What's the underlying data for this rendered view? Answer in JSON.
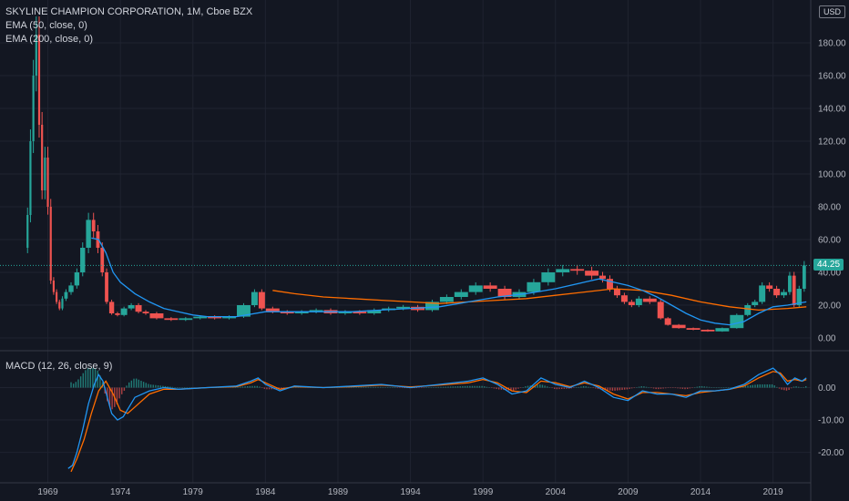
{
  "header": {
    "title": "SKYLINE CHAMPION CORPORATION, 1M, Cboe BZX",
    "ema50_label": "EMA (50, close, 0)",
    "ema200_label": "EMA (200, close, 0)",
    "macd_label": "MACD (12, 26, close, 9)"
  },
  "price_axis": {
    "currency": "USD",
    "current_price": "44.25",
    "current_price_color": "#26a69a"
  },
  "colors": {
    "background": "#131722",
    "up": "#26a69a",
    "down": "#ef5350",
    "ema50": "#2196f3",
    "ema200": "#ff6d00",
    "macd": "#2196f3",
    "signal": "#ff6d00"
  },
  "chart_data": [
    {
      "type": "candlestick",
      "title": "SKYLINE CHAMPION CORPORATION, 1M, Cboe BZX",
      "x_ticks": [
        "1969",
        "1974",
        "1979",
        "1984",
        "1989",
        "1994",
        "1999",
        "2004",
        "2009",
        "2014",
        "2019"
      ],
      "y_ticks": [
        "0.00",
        "20.00",
        "40.00",
        "60.00",
        "80.00",
        "100.00",
        "120.00",
        "140.00",
        "160.00",
        "180.00"
      ],
      "ylim": [
        -5,
        195
      ],
      "xlim": [
        1965.7,
        2021.6
      ],
      "close_series": {
        "name": "close",
        "x": [
          1967.5,
          1967.7,
          1967.9,
          1968.1,
          1968.3,
          1968.5,
          1968.7,
          1968.9,
          1969.1,
          1969.3,
          1969.5,
          1969.7,
          1969.9,
          1970.1,
          1970.4,
          1970.8,
          1971.2,
          1971.6,
          1972.0,
          1972.3,
          1972.6,
          1972.9,
          1973.2,
          1973.6,
          1974.0,
          1974.5,
          1975.0,
          1975.5,
          1976.0,
          1977.0,
          1978.0,
          1979.0,
          1980.0,
          1981.0,
          1982.0,
          1983.0,
          1983.5,
          1984.0,
          1985.0,
          1986.0,
          1987.0,
          1988.0,
          1989.0,
          1990.0,
          1991.0,
          1992.0,
          1993.0,
          1994.0,
          1995.0,
          1996.0,
          1997.0,
          1998.0,
          1999.0,
          2000.0,
          2001.0,
          2002.0,
          2003.0,
          2004.0,
          2005.0,
          2006.0,
          2007.0,
          2007.5,
          2008.0,
          2008.5,
          2009.0,
          2009.5,
          2010.0,
          2011.0,
          2011.5,
          2012.0,
          2013.0,
          2014.0,
          2015.0,
          2016.0,
          2017.0,
          2017.5,
          2018.0,
          2018.5,
          2019.0,
          2019.5,
          2020.0,
          2020.3,
          2020.6,
          2021.0,
          2021.3
        ],
        "values": [
          55,
          75,
          120,
          160,
          185,
          130,
          90,
          110,
          80,
          35,
          28,
          22,
          18,
          24,
          28,
          32,
          40,
          55,
          72,
          65,
          55,
          40,
          22,
          15,
          14,
          18,
          20,
          16,
          15,
          12,
          11,
          12,
          13,
          12,
          13,
          20,
          28,
          18,
          16,
          15,
          16,
          17,
          15,
          16,
          15,
          17,
          18,
          19,
          17,
          22,
          25,
          28,
          32,
          30,
          25,
          28,
          34,
          40,
          42,
          41,
          38,
          36,
          30,
          26,
          22,
          20,
          24,
          22,
          12,
          8,
          6,
          5,
          4,
          6,
          14,
          20,
          22,
          32,
          30,
          26,
          28,
          38,
          20,
          30,
          44.25
        ]
      },
      "ema50": {
        "name": "EMA (50, close, 0)",
        "x": [
          1972.0,
          1972.5,
          1973.0,
          1973.5,
          1974.0,
          1975.0,
          1976.0,
          1977.0,
          1978.0,
          1979.0,
          1980.0,
          1982.0,
          1984.0,
          1986.0,
          1988.0,
          1990.0,
          1992.0,
          1994.0,
          1996.0,
          1998.0,
          2000.0,
          2002.0,
          2004.0,
          2006.0,
          2007.0,
          2008.0,
          2009.0,
          2010.0,
          2011.0,
          2012.0,
          2013.0,
          2014.0,
          2015.0,
          2016.0,
          2017.0,
          2018.0,
          2019.0,
          2020.0,
          2021.3
        ],
        "values": [
          61,
          60,
          52,
          40,
          34,
          27,
          22,
          18,
          16,
          14,
          13,
          13,
          16,
          16,
          16,
          16,
          17,
          18,
          19,
          22,
          25,
          27,
          30,
          34,
          36,
          34,
          32,
          29,
          25,
          20,
          15,
          11,
          9,
          8,
          10,
          15,
          19,
          20,
          22
        ]
      },
      "ema200": {
        "name": "EMA (200, close, 0)",
        "x": [
          1984.5,
          1986.0,
          1988.0,
          1990.0,
          1992.0,
          1994.0,
          1996.0,
          1998.0,
          2000.0,
          2002.0,
          2004.0,
          2006.0,
          2008.0,
          2010.0,
          2012.0,
          2014.0,
          2016.0,
          2018.0,
          2020.0,
          2021.3
        ],
        "values": [
          29,
          27,
          25,
          24,
          23,
          22,
          21,
          22,
          23,
          24,
          26,
          28,
          30,
          29,
          26,
          22,
          19,
          17,
          18,
          19
        ]
      }
    },
    {
      "type": "line",
      "title": "MACD (12, 26, close, 9)",
      "y_ticks": [
        "0.00",
        "-10.00",
        "-20.00"
      ],
      "ylim": [
        -28,
        10
      ],
      "series": [
        {
          "name": "MACD",
          "x": [
            1970.4,
            1970.7,
            1971.0,
            1971.4,
            1971.8,
            1972.2,
            1972.5,
            1972.8,
            1973.1,
            1973.4,
            1973.8,
            1974.2,
            1974.6,
            1975.0,
            1976.0,
            1977.0,
            1978.0,
            1980.0,
            1982.0,
            1983.0,
            1983.5,
            1984.0,
            1985.0,
            1986.0,
            1988.0,
            1990.0,
            1992.0,
            1994.0,
            1996.0,
            1998.0,
            1999.0,
            2000.0,
            2001.0,
            2002.0,
            2003.0,
            2004.0,
            2005.0,
            2006.0,
            2007.0,
            2008.0,
            2009.0,
            2010.0,
            2011.0,
            2012.0,
            2013.0,
            2014.0,
            2015.0,
            2016.0,
            2017.0,
            2018.0,
            2019.0,
            2019.5,
            2020.0,
            2020.5,
            2021.0,
            2021.3
          ],
          "values": [
            -25,
            -24,
            -20,
            -13,
            -5,
            1,
            4,
            2,
            -3,
            -8,
            -10,
            -9,
            -6,
            -3,
            -1,
            0,
            -0.5,
            0,
            0.5,
            2,
            3,
            1,
            -1,
            0.5,
            0,
            0.5,
            1,
            0,
            1,
            2,
            3,
            1,
            -2,
            -1,
            3,
            1,
            0,
            2,
            0,
            -3,
            -4,
            -1,
            -2,
            -2,
            -3,
            -1,
            -1,
            -0.5,
            1,
            4,
            6,
            4,
            1,
            3,
            2,
            3
          ]
        },
        {
          "name": "Signal",
          "x": [
            1970.6,
            1971.0,
            1971.5,
            1972.0,
            1972.5,
            1973.0,
            1973.5,
            1974.0,
            1974.5,
            1975.0,
            1976.0,
            1977.0,
            1978.0,
            1980.0,
            1982.0,
            1983.0,
            1983.5,
            1984.0,
            1985.0,
            1986.0,
            1988.0,
            1990.0,
            1992.0,
            1994.0,
            1996.0,
            1998.0,
            1999.0,
            2000.0,
            2001.0,
            2002.0,
            2003.0,
            2004.0,
            2005.0,
            2006.0,
            2007.0,
            2008.0,
            2009.0,
            2010.0,
            2011.0,
            2012.0,
            2013.0,
            2014.0,
            2015.0,
            2016.0,
            2017.0,
            2018.0,
            2019.0,
            2019.5,
            2020.0,
            2020.5,
            2021.0,
            2021.3
          ],
          "values": [
            -26,
            -22,
            -16,
            -8,
            -1,
            2,
            -2,
            -7,
            -8,
            -6,
            -2,
            -0.5,
            -0.5,
            0,
            0.3,
            1.5,
            2.5,
            1.5,
            -0.5,
            0.3,
            0,
            0.3,
            0.8,
            0.2,
            0.8,
            1.5,
            2.5,
            1.5,
            -1,
            -1.5,
            2,
            1.5,
            0.3,
            1.5,
            0.5,
            -2,
            -3.5,
            -1.5,
            -1.5,
            -2,
            -2.5,
            -1.5,
            -1,
            -0.5,
            0.5,
            3,
            5,
            4.5,
            2,
            2.5,
            2,
            2.5
          ]
        }
      ]
    }
  ]
}
